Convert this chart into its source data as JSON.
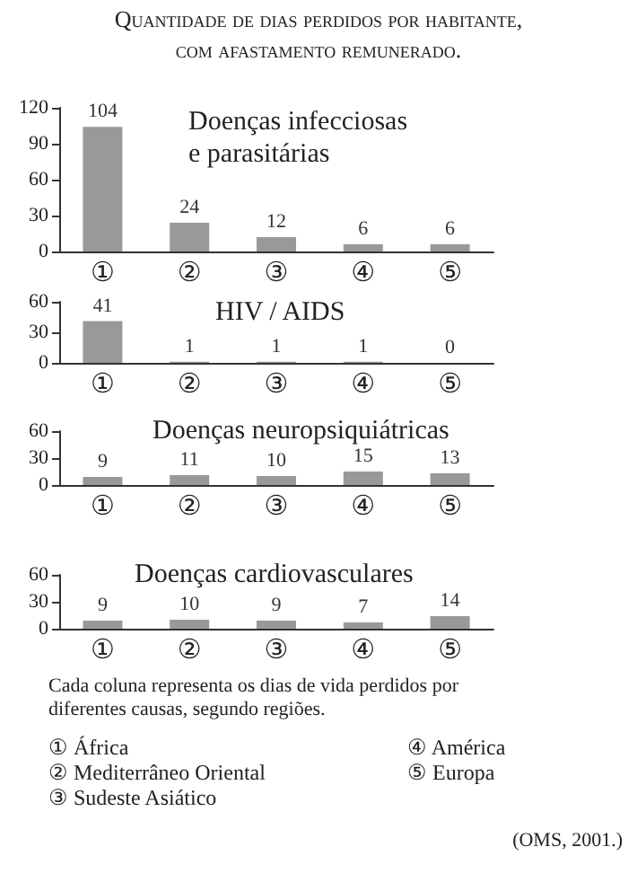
{
  "chart_data": [
    {
      "type": "bar",
      "subtitle": "Quantidade de dias perdidos por habitante, com afastamento remunerado.",
      "title": "Doenças infecciosas e parasitárias",
      "categories": [
        "①",
        "②",
        "③",
        "④",
        "⑤"
      ],
      "values": [
        104,
        24,
        12,
        6,
        6
      ],
      "color": "#999999",
      "ylim": [
        0,
        120
      ],
      "yticks": [
        0,
        30,
        60,
        90,
        120
      ],
      "data_labels": true,
      "grid": false
    },
    {
      "type": "bar",
      "title": "HIV / AIDS",
      "categories": [
        "①",
        "②",
        "③",
        "④",
        "⑤"
      ],
      "values": [
        41,
        1,
        1,
        1,
        0
      ],
      "color": "#999999",
      "ylim": [
        0,
        60
      ],
      "yticks": [
        0,
        30,
        60
      ],
      "data_labels": true,
      "grid": false
    },
    {
      "type": "bar",
      "title": "Doenças neuropsiquiátricas",
      "categories": [
        "①",
        "②",
        "③",
        "④",
        "⑤"
      ],
      "values": [
        9,
        11,
        10,
        15,
        13
      ],
      "color": "#999999",
      "ylim": [
        0,
        60
      ],
      "yticks": [
        0,
        30,
        60
      ],
      "data_labels": true,
      "grid": false
    },
    {
      "type": "bar",
      "title": "Doenças cardiovasculares",
      "categories": [
        "①",
        "②",
        "③",
        "④",
        "⑤"
      ],
      "values": [
        9,
        10,
        9,
        7,
        14
      ],
      "color": "#999999",
      "ylim": [
        0,
        60
      ],
      "yticks": [
        0,
        30,
        60
      ],
      "data_labels": true,
      "grid": false,
      "annotations": [
        "Cada coluna representa os dias de vida perdidos por diferentes causas, segundo regiões.",
        "① África",
        "② Mediterrâneo Oriental",
        "③ Sudeste Asiático",
        "④ América",
        "⑤ Europa",
        "(OMS, 2001.)"
      ]
    }
  ]
}
